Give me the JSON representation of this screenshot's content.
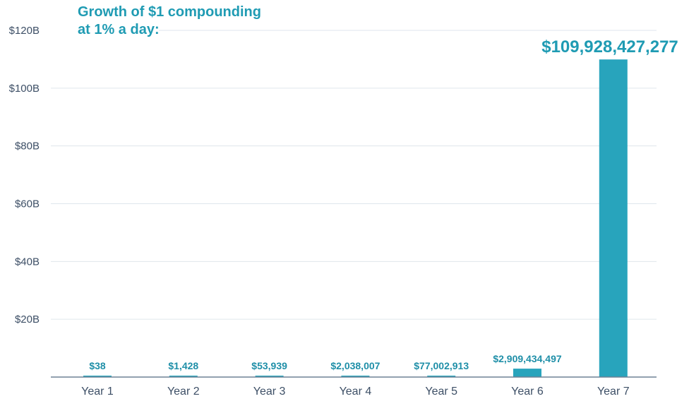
{
  "chart_data": {
    "type": "bar",
    "title_lines": [
      "Growth of $1 compounding",
      "at 1% a day:"
    ],
    "xlabel": "",
    "ylabel": "",
    "categories": [
      "Year 1",
      "Year 2",
      "Year 3",
      "Year 4",
      "Year 5",
      "Year 6",
      "Year 7"
    ],
    "values": [
      38,
      1428,
      53939,
      2038007,
      77002913,
      2909434497,
      109928427277
    ],
    "value_labels": [
      "$38",
      "$1,428",
      "$53,939",
      "$2,038,007",
      "$77,002,913",
      "$2,909,434,497",
      "$109,928,427,277"
    ],
    "ylim": [
      0,
      120000000000
    ],
    "y_ticks": [
      {
        "value": 20000000000,
        "label": "$20B"
      },
      {
        "value": 40000000000,
        "label": "$40B"
      },
      {
        "value": 60000000000,
        "label": "$60B"
      },
      {
        "value": 80000000000,
        "label": "$80B"
      },
      {
        "value": 100000000000,
        "label": "$100B"
      },
      {
        "value": 120000000000,
        "label": "$120B"
      }
    ],
    "grid": true,
    "legend": "none",
    "colors": {
      "bar": "#28a4bc",
      "title": "#1f9bb3",
      "label": "#1f8fa8",
      "axis_text": "#3d4f66",
      "grid": "#dfe6ec",
      "baseline": "#6f8295"
    }
  }
}
